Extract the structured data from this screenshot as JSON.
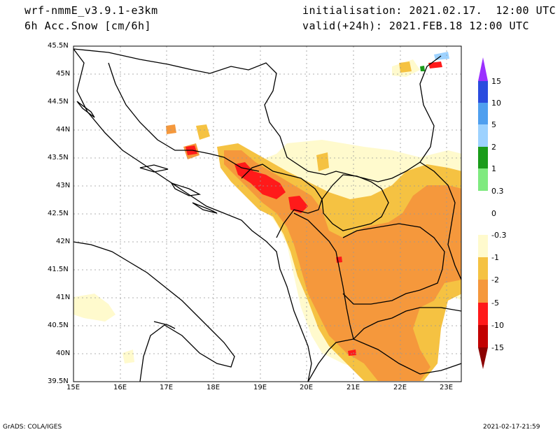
{
  "header": {
    "model": "wrf-nmmE_v3.9.1-e3km",
    "field": "6h Acc.Snow [cm/6h]",
    "init": "initialisation: 2021.02.17.  12:00 UTC",
    "valid": "valid(+24h): 2021.FEB.18 12:00 UTC"
  },
  "chart_data": {
    "type": "heatmap",
    "title": "6h Acc.Snow [cm/6h]",
    "xlabel": "",
    "ylabel": "",
    "x_ticks": [
      "15E",
      "16E",
      "17E",
      "18E",
      "19E",
      "20E",
      "21E",
      "22E",
      "23E"
    ],
    "y_ticks": [
      "45.5N",
      "45N",
      "44.5N",
      "44N",
      "43.5N",
      "43N",
      "42.5N",
      "42N",
      "41.5N",
      "41N",
      "40.5N",
      "40N",
      "39.5N"
    ],
    "xlim": [
      15,
      23.3
    ],
    "ylim": [
      39.5,
      45.5
    ],
    "grid": true,
    "legend": {
      "placement": "right",
      "labels": [
        "15",
        "10",
        "5",
        "2",
        "1",
        "0.3",
        "0",
        "-0.3",
        "-1",
        "-2",
        "-5",
        "-10",
        "-15"
      ],
      "colors": [
        "#9b30ff",
        "#2a4cdf",
        "#4f9fef",
        "#9dd2ff",
        "#1a9c1a",
        "#7fea7f",
        "#ffffff",
        "#fffacd",
        "#f5c242",
        "#f5983c",
        "#ff1a1a",
        "#c20000",
        "#8b0000"
      ]
    }
  },
  "footer": {
    "left": "GrADS: COLA/IGES",
    "right": "2021-02-17-21:59"
  },
  "colors": {
    "light_yellow": "#fffacd",
    "yellow": "#f5c242",
    "orange": "#f5983c",
    "red": "#ff1a1a",
    "dark_red": "#c20000",
    "light_blue": "#9dd2ff",
    "green": "#1a9c1a"
  }
}
